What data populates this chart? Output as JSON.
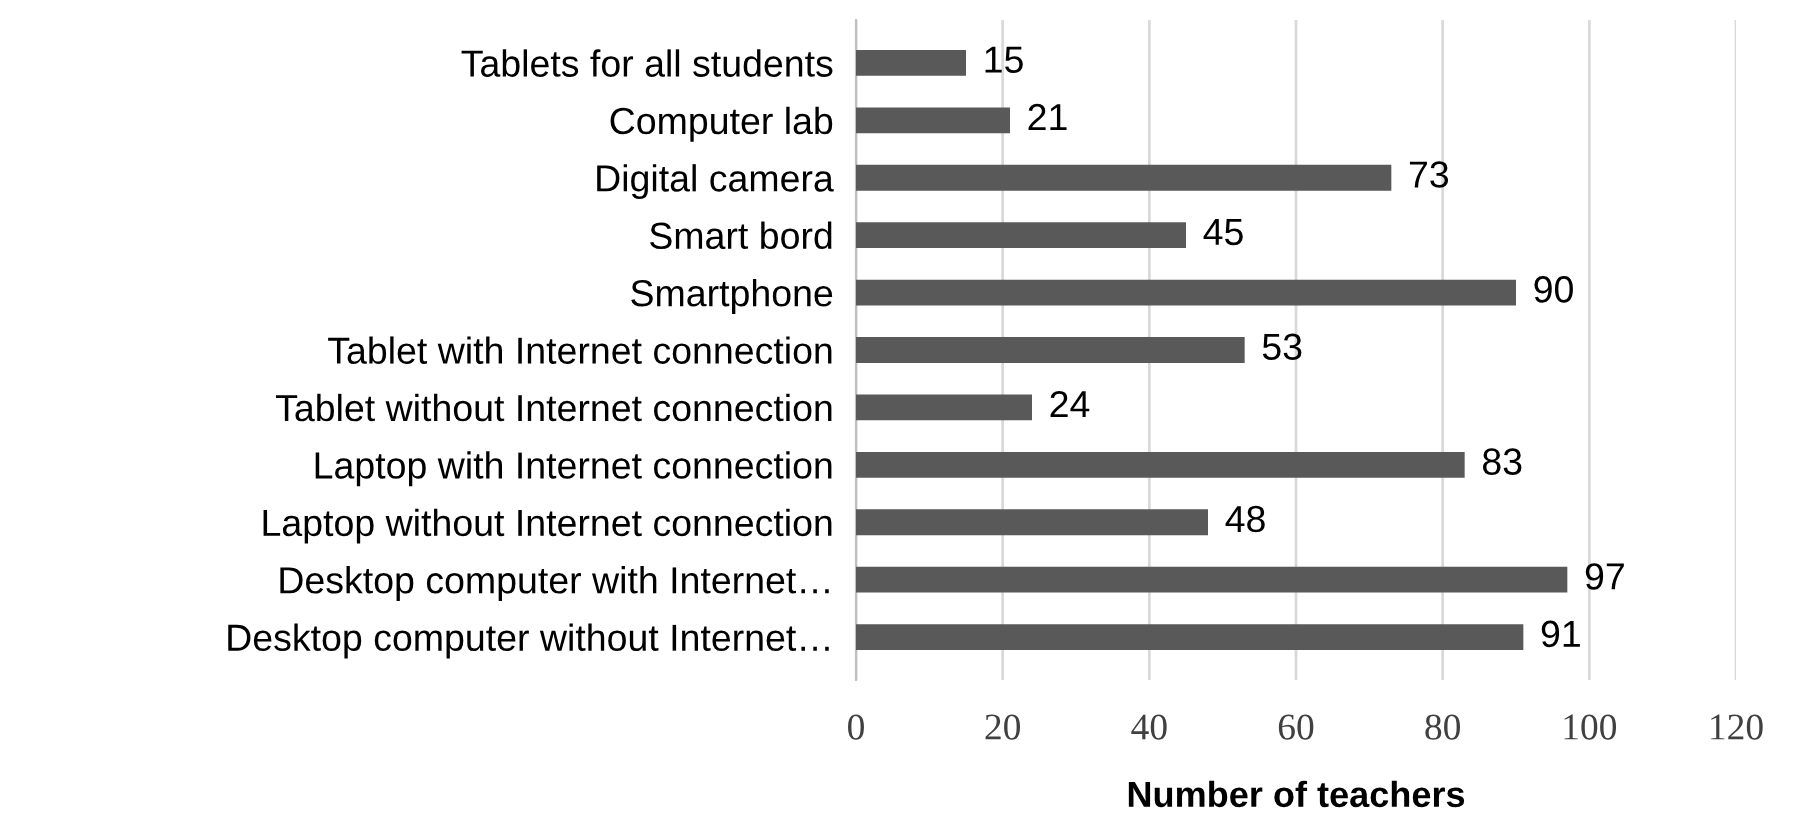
{
  "chart_data": {
    "type": "bar",
    "orientation": "horizontal",
    "xlabel": "Number of teachers",
    "categories": [
      "Tablets for all students",
      "Computer lab",
      "Digital camera",
      "Smart bord",
      "Smartphone",
      "Tablet with Internet connection",
      "Tablet without Internet connection",
      "Laptop with Internet connection",
      "Laptop without Internet connection",
      "Desktop computer with Internet…",
      "Desktop computer without Internet…"
    ],
    "values": [
      15,
      21,
      73,
      45,
      90,
      53,
      24,
      83,
      48,
      97,
      91
    ],
    "color": "#595959",
    "data_labels": true,
    "xlim": [
      0,
      120
    ],
    "xticks": [
      0,
      20,
      40,
      60,
      80,
      100,
      120
    ],
    "grid": "x"
  }
}
